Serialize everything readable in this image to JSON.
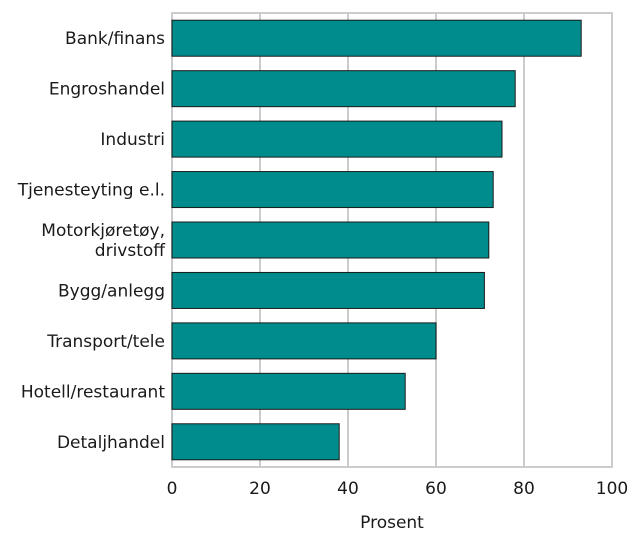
{
  "chart_data": {
    "type": "bar",
    "orientation": "horizontal",
    "categories": [
      [
        "Bank/finans"
      ],
      [
        "Engroshandel"
      ],
      [
        "Industri"
      ],
      [
        "Tjenesteyting e.l."
      ],
      [
        "Motorkjøretøy,",
        "drivstoff"
      ],
      [
        "Bygg/anlegg"
      ],
      [
        "Transport/tele"
      ],
      [
        "Hotell/restaurant"
      ],
      [
        "Detaljhandel"
      ]
    ],
    "values": [
      93,
      78,
      75,
      73,
      72,
      71,
      60,
      53,
      38
    ],
    "xlabel": "Prosent",
    "ylabel": "",
    "xlim": [
      0,
      100
    ],
    "xticks": [
      "0",
      "20",
      "40",
      "60",
      "80",
      "100"
    ],
    "grid": true,
    "bar_color": "#008c8c",
    "bar_outline": "#1a1a1a",
    "grid_color": "#cccccc"
  }
}
